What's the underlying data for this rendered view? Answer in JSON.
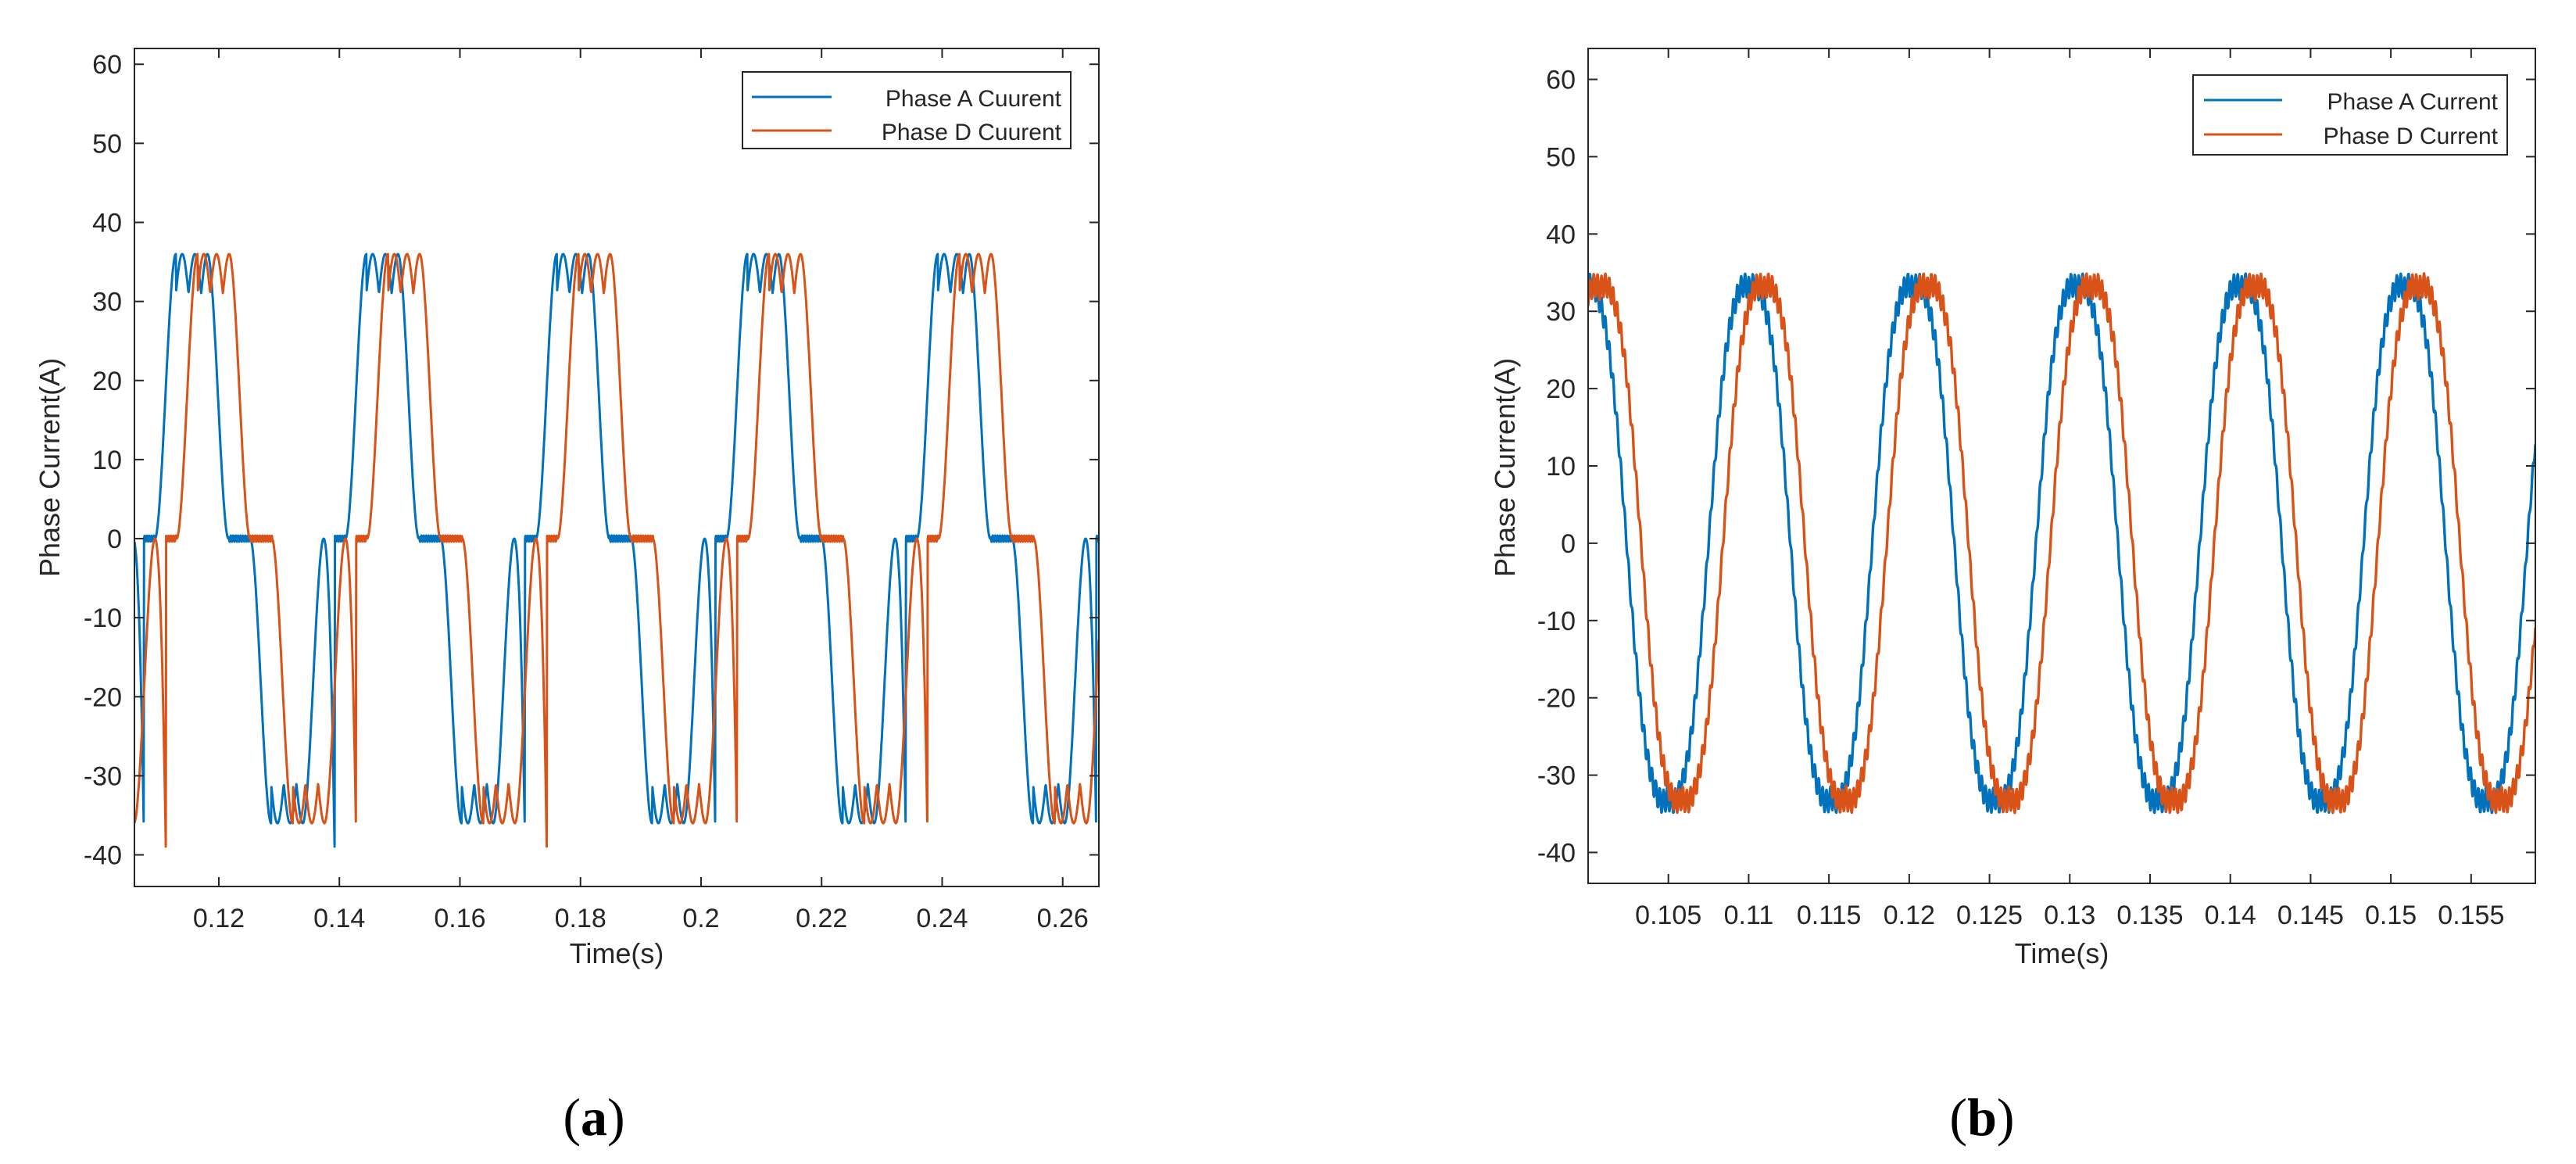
{
  "chart_data": [
    {
      "type": "line",
      "panel_label": "(a)",
      "panel_letter": "a",
      "xlabel": "Time(s)",
      "ylabel": "Phase Current(A)",
      "xlim": [
        0.106,
        0.266
      ],
      "ylim": [
        -44,
        62
      ],
      "xticks": [
        "0.12",
        "0.14",
        "0.16",
        "0.18",
        "0.2",
        "0.22",
        "0.24",
        "0.26"
      ],
      "xtick_values": [
        0.12,
        0.14,
        0.16,
        0.18,
        0.2,
        0.22,
        0.24,
        0.26
      ],
      "yticks": [
        "60",
        "50",
        "40",
        "30",
        "20",
        "10",
        "0",
        "-10",
        "-20",
        "-30",
        "-40"
      ],
      "ytick_values": [
        60,
        50,
        40,
        30,
        20,
        10,
        0,
        -10,
        -20,
        -30,
        -40
      ],
      "legend_position": "top-right",
      "waveform": {
        "period": 0.0316,
        "amplitude": 36,
        "ripple": 5,
        "dead_band_width": 0.0036
      },
      "series": [
        {
          "name": "Phase A Cuurent",
          "color": "#0072BD",
          "phase_offset": 0.0
        },
        {
          "name": "Phase D Cuurent",
          "color": "#D95319",
          "phase_offset": 0.0036
        }
      ]
    },
    {
      "type": "line",
      "panel_label": "(b)",
      "panel_letter": "b",
      "xlabel": "Time(s)",
      "ylabel": "Phase Current(A)",
      "xlim": [
        0.1,
        0.159
      ],
      "ylim": [
        -44,
        64
      ],
      "xticks": [
        "0.105",
        "0.11",
        "0.115",
        "0.12",
        "0.125",
        "0.13",
        "0.135",
        "0.14",
        "0.145",
        "0.15",
        "0.155"
      ],
      "xtick_values": [
        0.105,
        0.11,
        0.115,
        0.12,
        0.125,
        0.13,
        0.135,
        0.14,
        0.145,
        0.15,
        0.155
      ],
      "yticks": [
        "60",
        "50",
        "40",
        "30",
        "20",
        "10",
        "0",
        "-10",
        "-20",
        "-30",
        "-40"
      ],
      "ytick_values": [
        60,
        50,
        40,
        30,
        20,
        10,
        0,
        -10,
        -20,
        -30,
        -40
      ],
      "legend_position": "top-right",
      "waveform": {
        "period": 0.0102,
        "amplitude": 34,
        "ripple": 1.5
      },
      "series": [
        {
          "name": "Phase A Current",
          "color": "#0072BD",
          "phase_offset": 0.0
        },
        {
          "name": "Phase D Current",
          "color": "#D95319",
          "phase_offset": 0.0009
        }
      ]
    }
  ]
}
